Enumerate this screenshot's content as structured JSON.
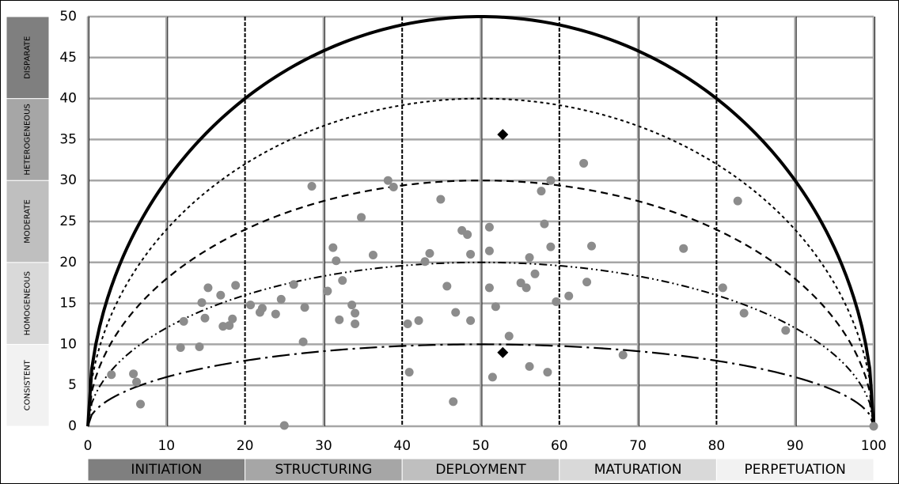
{
  "chart_data": {
    "type": "scatter",
    "title": "",
    "xlabel": "",
    "ylabel": "",
    "xlim": [
      0,
      100
    ],
    "ylim": [
      0,
      50
    ],
    "x_ticks": [
      0,
      10,
      20,
      30,
      40,
      50,
      60,
      70,
      80,
      90,
      100
    ],
    "y_ticks": [
      0,
      5,
      10,
      15,
      20,
      25,
      30,
      35,
      40,
      45,
      50
    ],
    "grid": true,
    "colors": {
      "points": "#8c8c8c",
      "markers": "#000000",
      "curves": "#000000",
      "grid": "#a6a6a6"
    },
    "y_bands": [
      {
        "label": "CONSISTENT",
        "from": 0,
        "to": 10,
        "color": "#f2f2f2"
      },
      {
        "label": "HOMOGENEOUS",
        "from": 10,
        "to": 20,
        "color": "#d9d9d9"
      },
      {
        "label": "MODERATE",
        "from": 20,
        "to": 30,
        "color": "#bfbfbf"
      },
      {
        "label": "HETEROGENEOUS",
        "from": 30,
        "to": 40,
        "color": "#a6a6a6"
      },
      {
        "label": "DISPARATE",
        "from": 40,
        "to": 50,
        "color": "#7f7f7f"
      }
    ],
    "x_bands": [
      {
        "label": "INITIATION",
        "from": 0,
        "to": 20,
        "color": "#7f7f7f"
      },
      {
        "label": "STRUCTURING",
        "from": 20,
        "to": 40,
        "color": "#a6a6a6"
      },
      {
        "label": "DEPLOYMENT",
        "from": 40,
        "to": 60,
        "color": "#bfbfbf"
      },
      {
        "label": "MATURATION",
        "from": 60,
        "to": 80,
        "color": "#d9d9d9"
      },
      {
        "label": "PERPETUATION",
        "from": 80,
        "to": 100,
        "color": "#f2f2f2"
      }
    ],
    "curves": [
      {
        "height": 50,
        "style": "solid"
      },
      {
        "height": 40,
        "style": "dotted"
      },
      {
        "height": 30,
        "style": "dashed"
      },
      {
        "height": 20,
        "style": "dashdotdot"
      },
      {
        "height": 10,
        "style": "longdashdot"
      }
    ],
    "series": [
      {
        "marker": "circle",
        "points": [
          [
            3,
            6.3
          ],
          [
            5.8,
            6.4
          ],
          [
            6.2,
            5.4
          ],
          [
            6.7,
            2.7
          ],
          [
            11.8,
            9.6
          ],
          [
            12.2,
            12.8
          ],
          [
            14.2,
            9.7
          ],
          [
            14.5,
            15.1
          ],
          [
            14.9,
            13.2
          ],
          [
            15.3,
            16.9
          ],
          [
            16.9,
            16.0
          ],
          [
            17.2,
            12.2
          ],
          [
            18.0,
            12.3
          ],
          [
            18.4,
            13.1
          ],
          [
            18.8,
            17.2
          ],
          [
            20.7,
            14.8
          ],
          [
            21.9,
            13.9
          ],
          [
            22.2,
            14.4
          ],
          [
            23.9,
            13.7
          ],
          [
            24.6,
            15.5
          ],
          [
            25.0,
            0.1
          ],
          [
            26.2,
            17.3
          ],
          [
            27.4,
            10.3
          ],
          [
            27.6,
            14.5
          ],
          [
            28.5,
            29.3
          ],
          [
            30.5,
            16.5
          ],
          [
            31.2,
            21.8
          ],
          [
            31.6,
            20.2
          ],
          [
            32.0,
            13.0
          ],
          [
            32.4,
            17.8
          ],
          [
            33.6,
            14.8
          ],
          [
            34.0,
            13.8
          ],
          [
            34.0,
            12.5
          ],
          [
            34.8,
            25.5
          ],
          [
            36.3,
            20.9
          ],
          [
            38.2,
            30.0
          ],
          [
            38.9,
            29.2
          ],
          [
            40.7,
            12.5
          ],
          [
            40.9,
            6.6
          ],
          [
            42.1,
            12.9
          ],
          [
            42.9,
            20.1
          ],
          [
            43.5,
            21.1
          ],
          [
            44.9,
            27.7
          ],
          [
            45.7,
            17.1
          ],
          [
            46.5,
            3.0
          ],
          [
            46.8,
            13.9
          ],
          [
            47.6,
            23.9
          ],
          [
            48.3,
            23.4
          ],
          [
            48.7,
            21.0
          ],
          [
            48.7,
            12.9
          ],
          [
            51.1,
            24.3
          ],
          [
            51.1,
            21.4
          ],
          [
            51.1,
            16.9
          ],
          [
            51.5,
            6.0
          ],
          [
            51.9,
            14.6
          ],
          [
            53.6,
            11.0
          ],
          [
            55.1,
            17.5
          ],
          [
            55.8,
            16.9
          ],
          [
            56.2,
            20.6
          ],
          [
            56.2,
            7.3
          ],
          [
            56.9,
            18.6
          ],
          [
            57.7,
            28.7
          ],
          [
            58.1,
            24.7
          ],
          [
            58.5,
            6.6
          ],
          [
            58.9,
            30.0
          ],
          [
            58.9,
            21.9
          ],
          [
            59.6,
            15.2
          ],
          [
            61.2,
            15.9
          ],
          [
            63.1,
            32.1
          ],
          [
            63.5,
            17.6
          ],
          [
            64.1,
            22.0
          ],
          [
            68.1,
            8.7
          ],
          [
            75.8,
            21.7
          ],
          [
            80.8,
            16.9
          ],
          [
            82.7,
            27.5
          ],
          [
            83.5,
            13.8
          ],
          [
            88.8,
            11.7
          ],
          [
            100,
            0
          ]
        ]
      },
      {
        "marker": "diamond",
        "points": [
          [
            52.8,
            35.6
          ],
          [
            52.8,
            9.0
          ]
        ]
      }
    ]
  }
}
